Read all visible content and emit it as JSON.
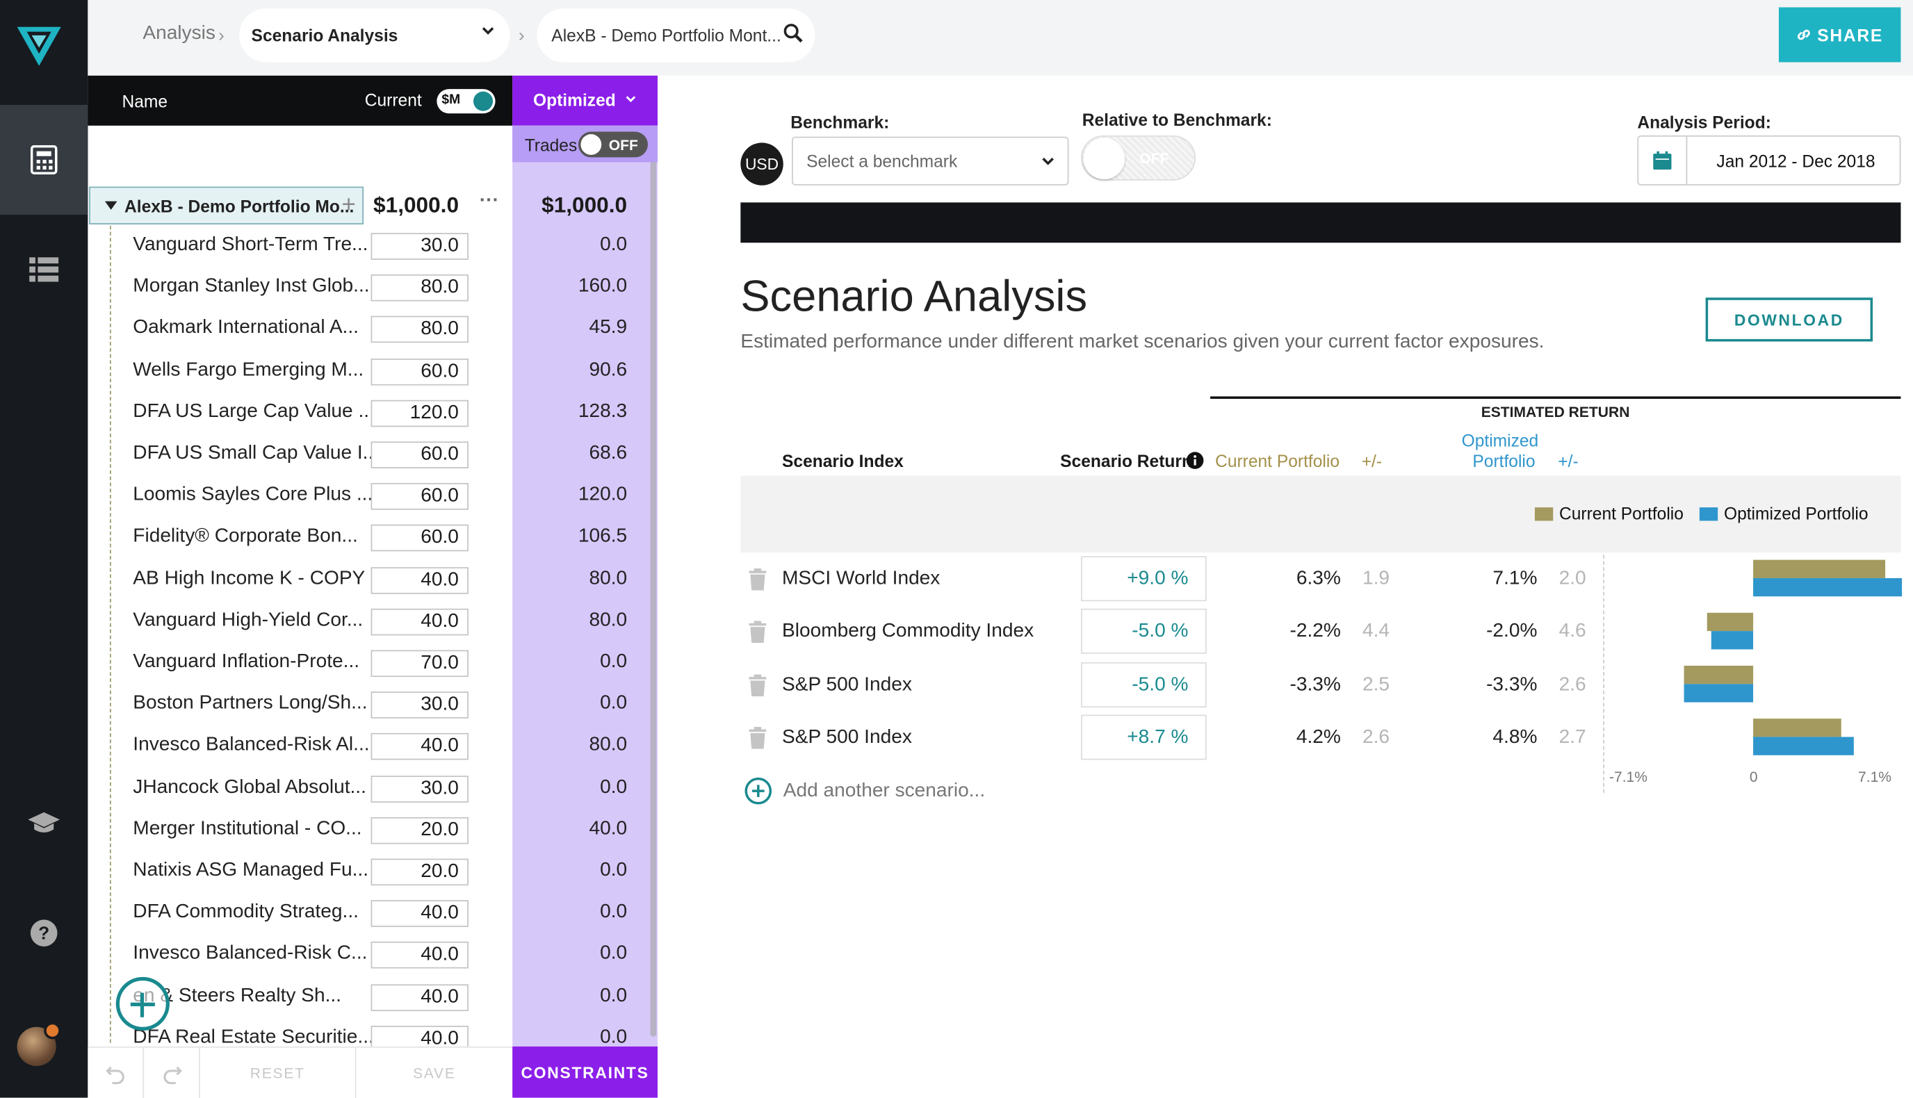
{
  "breadcrumb": {
    "root": "Analysis",
    "tool": "Scenario Analysis",
    "portfolio": "AlexB - Demo Portfolio Mont..."
  },
  "share_label": "SHARE",
  "panel": {
    "name_header": "Name",
    "current_header": "Current",
    "units_toggle": "$M",
    "optimized_header": "Optimized",
    "trades_label": "Trades",
    "trades_toggle": "OFF",
    "root_name": "AlexB - Demo Portfolio Mo...",
    "root_current": "$1,000.0",
    "root_optimized": "$1,000.0",
    "holdings": [
      {
        "name": "Vanguard Short-Term Tre...",
        "current": "30.0",
        "optimized": "0.0"
      },
      {
        "name": "Morgan Stanley Inst Glob...",
        "current": "80.0",
        "optimized": "160.0"
      },
      {
        "name": "Oakmark International A...",
        "current": "80.0",
        "optimized": "45.9"
      },
      {
        "name": "Wells Fargo Emerging M...",
        "current": "60.0",
        "optimized": "90.6"
      },
      {
        "name": "DFA US Large Cap Value ...",
        "current": "120.0",
        "optimized": "128.3"
      },
      {
        "name": "DFA US Small Cap Value I...",
        "current": "60.0",
        "optimized": "68.6"
      },
      {
        "name": "Loomis Sayles Core Plus ...",
        "current": "60.0",
        "optimized": "120.0"
      },
      {
        "name": "Fidelity® Corporate Bon...",
        "current": "60.0",
        "optimized": "106.5"
      },
      {
        "name": "AB High Income K - COPY",
        "current": "40.0",
        "optimized": "80.0"
      },
      {
        "name": "Vanguard High-Yield Cor...",
        "current": "40.0",
        "optimized": "80.0"
      },
      {
        "name": "Vanguard Inflation-Prote...",
        "current": "70.0",
        "optimized": "0.0"
      },
      {
        "name": "Boston Partners Long/Sh...",
        "current": "30.0",
        "optimized": "0.0"
      },
      {
        "name": "Invesco Balanced-Risk Al...",
        "current": "40.0",
        "optimized": "80.0"
      },
      {
        "name": "JHancock Global Absolut...",
        "current": "30.0",
        "optimized": "0.0"
      },
      {
        "name": "Merger Institutional - CO...",
        "current": "20.0",
        "optimized": "40.0"
      },
      {
        "name": "Natixis ASG Managed Fu...",
        "current": "20.0",
        "optimized": "0.0"
      },
      {
        "name": "DFA Commodity Strateg...",
        "current": "40.0",
        "optimized": "0.0"
      },
      {
        "name": "Invesco Balanced-Risk C...",
        "current": "40.0",
        "optimized": "0.0"
      },
      {
        "name": "en & Steers Realty Sh...",
        "current": "40.0",
        "optimized": "0.0"
      },
      {
        "name": "DFA Real Estate Securitie...",
        "current": "40.0",
        "optimized": "0.0"
      }
    ],
    "reset_label": "RESET",
    "save_label": "SAVE",
    "constraints_label": "CONSTRAINTS"
  },
  "controls": {
    "currency": "USD",
    "benchmark_label": "Benchmark:",
    "benchmark_placeholder": "Select a benchmark",
    "relative_label": "Relative to Benchmark:",
    "relative_toggle": "OFF",
    "period_label": "Analysis Period:",
    "period_value": "Jan 2012 - Dec 2018"
  },
  "main": {
    "title": "Scenario Analysis",
    "subtitle": "Estimated performance under different market scenarios given your current factor exposures.",
    "download_label": "DOWNLOAD",
    "estimated_return_header": "ESTIMATED RETURN",
    "col_scenario_index": "Scenario Index",
    "col_scenario_return": "Scenario Return",
    "col_current_portfolio": "Current Portfolio",
    "col_pm1": "+/-",
    "col_optimized_l1": "Optimized",
    "col_optimized_l2": "Portfolio",
    "col_pm2": "+/-",
    "legend_current": "Current Portfolio",
    "legend_optimized": "Optimized Portfolio",
    "add_scenario": "Add another scenario...",
    "colors": {
      "current": "#a49a5f",
      "optimized": "#2f96cd",
      "accent": "#1a8a8f",
      "purple": "#8b1ee8"
    }
  },
  "chart_data": {
    "type": "bar",
    "orientation": "horizontal",
    "categories": [
      "MSCI World Index",
      "Bloomberg Commodity Index",
      "S&P 500 Index",
      "S&P 500 Index"
    ],
    "scenario_returns": [
      "+9.0 %",
      "-5.0 %",
      "-5.0 %",
      "+8.7 %"
    ],
    "current_text": [
      "6.3%",
      "-2.2%",
      "-3.3%",
      "4.2%"
    ],
    "current_pm": [
      "1.9",
      "4.4",
      "2.5",
      "2.6"
    ],
    "optimized_text": [
      "7.1%",
      "-2.0%",
      "-3.3%",
      "4.8%"
    ],
    "optimized_pm": [
      "2.0",
      "4.6",
      "2.6",
      "2.7"
    ],
    "series": [
      {
        "name": "Current Portfolio",
        "values": [
          6.3,
          -2.2,
          -3.3,
          4.2
        ]
      },
      {
        "name": "Optimized Portfolio",
        "values": [
          7.1,
          -2.0,
          -3.3,
          4.8
        ]
      }
    ],
    "xlim": [
      -7.1,
      7.1
    ],
    "tick_labels": [
      "-7.1%",
      "0",
      "7.1%"
    ],
    "legend": "top-right"
  }
}
